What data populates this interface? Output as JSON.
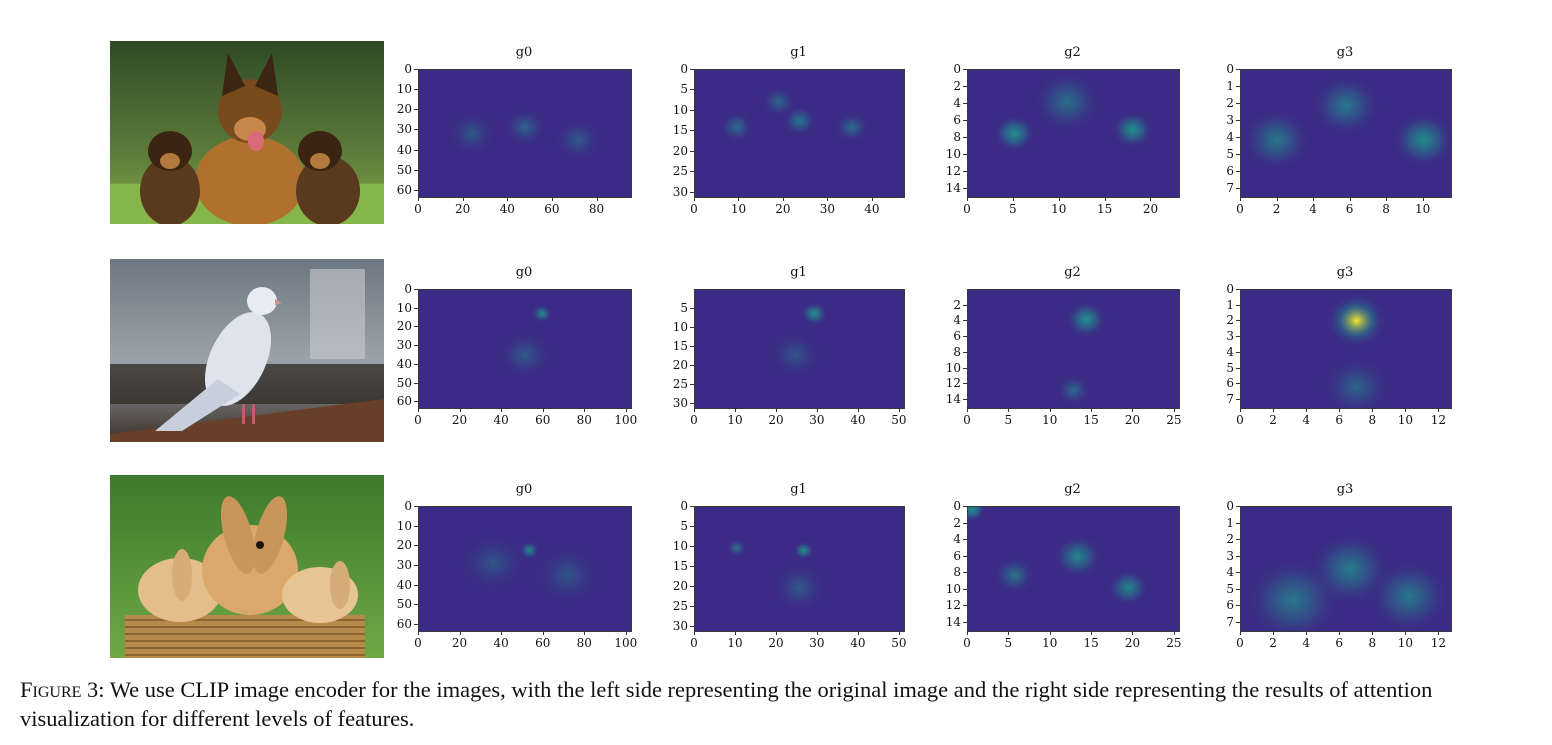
{
  "figure": {
    "rows": [
      {
        "photo": {
          "subject": "dog-photo",
          "icon": "dogs-image"
        },
        "panels": [
          {
            "title": "g0",
            "xticks": [
              "0",
              "20",
              "40",
              "60",
              "80"
            ],
            "xmax": 95,
            "yticks": [
              "0",
              "10",
              "20",
              "30",
              "40",
              "50",
              "60"
            ],
            "ymax": 63,
            "hot": [
              [
                0.5,
                0.45,
                0.06,
                0.35
              ],
              [
                0.25,
                0.5,
                0.07,
                0.25
              ],
              [
                0.75,
                0.55,
                0.07,
                0.25
              ]
            ]
          },
          {
            "title": "g1",
            "xticks": [
              "0",
              "10",
              "20",
              "30",
              "40"
            ],
            "xmax": 47,
            "yticks": [
              "0",
              "5",
              "10",
              "15",
              "20",
              "25",
              "30"
            ],
            "ymax": 31,
            "hot": [
              [
                0.5,
                0.4,
                0.05,
                0.55
              ],
              [
                0.2,
                0.45,
                0.05,
                0.45
              ],
              [
                0.75,
                0.45,
                0.05,
                0.45
              ],
              [
                0.4,
                0.25,
                0.05,
                0.4
              ]
            ]
          },
          {
            "title": "g2",
            "xticks": [
              "0",
              "5",
              "10",
              "15",
              "20"
            ],
            "xmax": 23,
            "yticks": [
              "0",
              "2",
              "4",
              "6",
              "8",
              "10",
              "12",
              "14"
            ],
            "ymax": 15,
            "hot": [
              [
                0.22,
                0.5,
                0.06,
                0.85
              ],
              [
                0.78,
                0.47,
                0.06,
                0.85
              ],
              [
                0.47,
                0.25,
                0.1,
                0.45
              ]
            ]
          },
          {
            "title": "g3",
            "xticks": [
              "0",
              "2",
              "4",
              "6",
              "8",
              "10"
            ],
            "xmax": 11.5,
            "yticks": [
              "0",
              "1",
              "2",
              "3",
              "4",
              "5",
              "6",
              "7"
            ],
            "ymax": 7.5,
            "hot": [
              [
                0.5,
                0.28,
                0.1,
                0.55
              ],
              [
                0.17,
                0.55,
                0.1,
                0.55
              ],
              [
                0.87,
                0.55,
                0.09,
                0.75
              ]
            ]
          }
        ]
      },
      {
        "photo": {
          "subject": "pigeon-photo",
          "icon": "pigeon-image"
        },
        "panels": [
          {
            "title": "g0",
            "xticks": [
              "0",
              "20",
              "40",
              "60",
              "80",
              "100"
            ],
            "xmax": 102,
            "yticks": [
              "0",
              "10",
              "20",
              "30",
              "40",
              "50",
              "60"
            ],
            "ymax": 63,
            "hot": [
              [
                0.58,
                0.2,
                0.03,
                0.75
              ],
              [
                0.5,
                0.55,
                0.08,
                0.25
              ]
            ]
          },
          {
            "title": "g1",
            "xticks": [
              "0",
              "10",
              "20",
              "30",
              "40",
              "50"
            ],
            "xmax": 51,
            "yticks": [
              "5",
              "10",
              "15",
              "20",
              "25",
              "30"
            ],
            "ymax": 31,
            "hot": [
              [
                0.57,
                0.2,
                0.04,
                0.8
              ],
              [
                0.48,
                0.55,
                0.08,
                0.2
              ]
            ]
          },
          {
            "title": "g2",
            "xticks": [
              "0",
              "5",
              "10",
              "15",
              "20",
              "25"
            ],
            "xmax": 25.5,
            "yticks": [
              "2",
              "4",
              "6",
              "8",
              "10",
              "12",
              "14"
            ],
            "ymax": 15,
            "hot": [
              [
                0.56,
                0.25,
                0.06,
                0.8
              ],
              [
                0.5,
                0.85,
                0.05,
                0.4
              ]
            ]
          },
          {
            "title": "g3",
            "xticks": [
              "0",
              "2",
              "4",
              "6",
              "8",
              "10",
              "12"
            ],
            "xmax": 12.7,
            "yticks": [
              "0",
              "1",
              "2",
              "3",
              "4",
              "5",
              "6",
              "7"
            ],
            "ymax": 7.5,
            "hot": [
              [
                0.55,
                0.26,
                0.09,
                1.0
              ],
              [
                0.55,
                0.82,
                0.1,
                0.35
              ]
            ]
          }
        ]
      },
      {
        "photo": {
          "subject": "rabbits-photo",
          "icon": "rabbits-image"
        },
        "panels": [
          {
            "title": "g0",
            "xticks": [
              "0",
              "20",
              "40",
              "60",
              "80",
              "100"
            ],
            "xmax": 102,
            "yticks": [
              "0",
              "10",
              "20",
              "30",
              "40",
              "50",
              "60"
            ],
            "ymax": 63,
            "hot": [
              [
                0.52,
                0.35,
                0.03,
                0.7
              ],
              [
                0.35,
                0.45,
                0.1,
                0.2
              ],
              [
                0.7,
                0.55,
                0.1,
                0.2
              ]
            ]
          },
          {
            "title": "g1",
            "xticks": [
              "0",
              "10",
              "20",
              "30",
              "40",
              "50"
            ],
            "xmax": 51,
            "yticks": [
              "0",
              "5",
              "10",
              "15",
              "20",
              "25",
              "30"
            ],
            "ymax": 31,
            "hot": [
              [
                0.52,
                0.35,
                0.03,
                0.8
              ],
              [
                0.2,
                0.33,
                0.03,
                0.5
              ],
              [
                0.5,
                0.65,
                0.08,
                0.25
              ]
            ]
          },
          {
            "title": "g2",
            "xticks": [
              "0",
              "5",
              "10",
              "15",
              "20",
              "25"
            ],
            "xmax": 25.5,
            "yticks": [
              "0",
              "2",
              "4",
              "6",
              "8",
              "10",
              "12",
              "14"
            ],
            "ymax": 15,
            "hot": [
              [
                0.52,
                0.4,
                0.07,
                0.7
              ],
              [
                0.76,
                0.65,
                0.06,
                0.7
              ],
              [
                0.22,
                0.55,
                0.06,
                0.5
              ],
              [
                0.02,
                0.02,
                0.04,
                0.9
              ]
            ]
          },
          {
            "title": "g3",
            "xticks": [
              "0",
              "2",
              "4",
              "6",
              "8",
              "10",
              "12"
            ],
            "xmax": 12.7,
            "yticks": [
              "0",
              "1",
              "2",
              "3",
              "4",
              "5",
              "6",
              "7"
            ],
            "ymax": 7.5,
            "hot": [
              [
                0.52,
                0.5,
                0.12,
                0.6
              ],
              [
                0.25,
                0.75,
                0.14,
                0.55
              ],
              [
                0.8,
                0.72,
                0.12,
                0.55
              ]
            ]
          }
        ]
      }
    ]
  },
  "caption": {
    "label": "Figure 3:",
    "text": " We use CLIP image encoder for the images, with the left side representing the original image and the right side representing the results of attention visualization for different levels of features."
  },
  "colors": {
    "viridis_low": "#3b2b86",
    "viridis_mid": "#21918c",
    "viridis_high": "#fde725"
  }
}
